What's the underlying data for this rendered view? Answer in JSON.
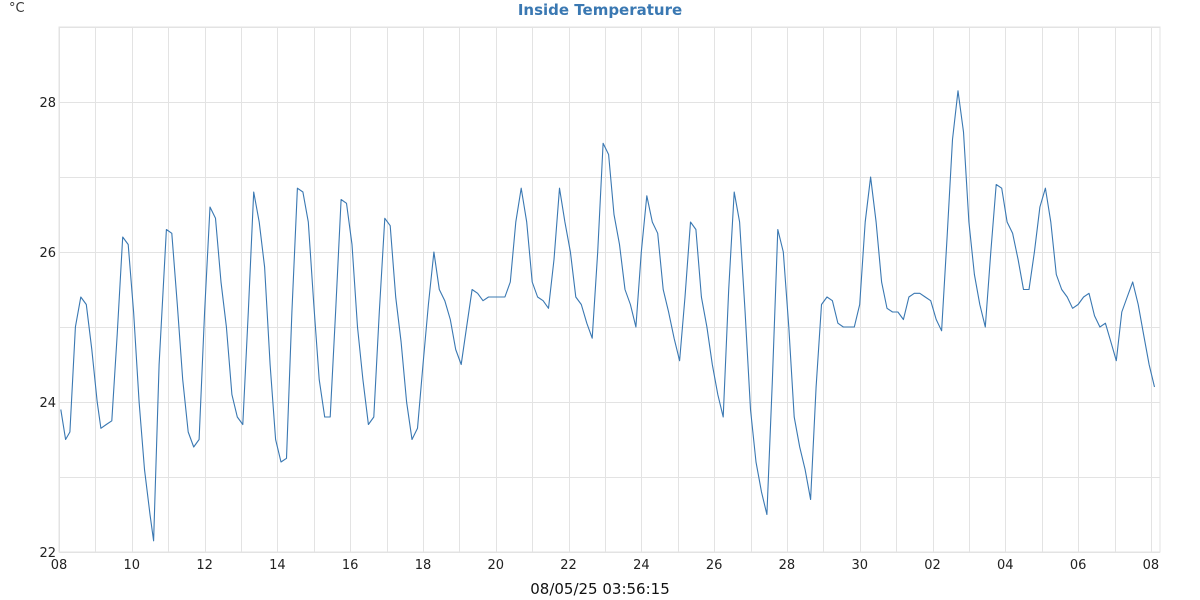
{
  "header": {
    "title": "Inside Temperature",
    "unit": "°C"
  },
  "footer": {
    "timestamp": "08/05/25 03:56:15"
  },
  "colors": {
    "line": "#3a78b2",
    "grid": "#e3e3e3",
    "title": "#3a78b2"
  },
  "chart_data": {
    "type": "line",
    "title": "Inside Temperature",
    "ylabel": "°C",
    "xlabel": "",
    "grid": true,
    "ylim": [
      22,
      29
    ],
    "xlim": [
      0,
      30.25
    ],
    "x_tick_labels": [
      {
        "x": 0,
        "label": "08"
      },
      {
        "x": 2,
        "label": "10"
      },
      {
        "x": 4,
        "label": "12"
      },
      {
        "x": 6,
        "label": "14"
      },
      {
        "x": 8,
        "label": "16"
      },
      {
        "x": 10,
        "label": "18"
      },
      {
        "x": 12,
        "label": "20"
      },
      {
        "x": 14,
        "label": "22"
      },
      {
        "x": 16,
        "label": "24"
      },
      {
        "x": 18,
        "label": "26"
      },
      {
        "x": 20,
        "label": "28"
      },
      {
        "x": 22,
        "label": "30"
      },
      {
        "x": 24,
        "label": "02"
      },
      {
        "x": 26,
        "label": "04"
      },
      {
        "x": 28,
        "label": "06"
      },
      {
        "x": 30,
        "label": "08"
      }
    ],
    "y_ticks": [
      22,
      24,
      26,
      28
    ],
    "series": [
      {
        "values": [
          [
            0.05,
            23.9
          ],
          [
            0.18,
            23.5
          ],
          [
            0.3,
            23.6
          ],
          [
            0.45,
            25.0
          ],
          [
            0.6,
            25.4
          ],
          [
            0.75,
            25.3
          ],
          [
            0.9,
            24.7
          ],
          [
            1.05,
            24.0
          ],
          [
            1.15,
            23.65
          ],
          [
            1.3,
            23.7
          ],
          [
            1.45,
            23.75
          ],
          [
            1.6,
            24.9
          ],
          [
            1.75,
            26.2
          ],
          [
            1.9,
            26.1
          ],
          [
            2.05,
            25.2
          ],
          [
            2.2,
            24.0
          ],
          [
            2.35,
            23.1
          ],
          [
            2.5,
            22.5
          ],
          [
            2.6,
            22.15
          ],
          [
            2.75,
            24.5
          ],
          [
            2.95,
            26.3
          ],
          [
            3.1,
            26.25
          ],
          [
            3.25,
            25.3
          ],
          [
            3.4,
            24.3
          ],
          [
            3.55,
            23.6
          ],
          [
            3.7,
            23.4
          ],
          [
            3.85,
            23.5
          ],
          [
            4.0,
            25.2
          ],
          [
            4.15,
            26.6
          ],
          [
            4.3,
            26.45
          ],
          [
            4.45,
            25.6
          ],
          [
            4.6,
            25.0
          ],
          [
            4.75,
            24.1
          ],
          [
            4.9,
            23.8
          ],
          [
            5.05,
            23.7
          ],
          [
            5.2,
            25.2
          ],
          [
            5.35,
            26.8
          ],
          [
            5.5,
            26.4
          ],
          [
            5.65,
            25.8
          ],
          [
            5.8,
            24.5
          ],
          [
            5.95,
            23.5
          ],
          [
            6.1,
            23.2
          ],
          [
            6.25,
            23.25
          ],
          [
            6.4,
            25.2
          ],
          [
            6.55,
            26.85
          ],
          [
            6.7,
            26.8
          ],
          [
            6.85,
            26.4
          ],
          [
            7.0,
            25.3
          ],
          [
            7.15,
            24.3
          ],
          [
            7.3,
            23.8
          ],
          [
            7.45,
            23.8
          ],
          [
            7.6,
            25.2
          ],
          [
            7.75,
            26.7
          ],
          [
            7.9,
            26.65
          ],
          [
            8.05,
            26.1
          ],
          [
            8.2,
            25.0
          ],
          [
            8.35,
            24.3
          ],
          [
            8.5,
            23.7
          ],
          [
            8.65,
            23.8
          ],
          [
            8.8,
            25.2
          ],
          [
            8.95,
            26.45
          ],
          [
            9.1,
            26.35
          ],
          [
            9.25,
            25.4
          ],
          [
            9.4,
            24.8
          ],
          [
            9.55,
            24.0
          ],
          [
            9.7,
            23.5
          ],
          [
            9.85,
            23.65
          ],
          [
            10.0,
            24.5
          ],
          [
            10.15,
            25.3
          ],
          [
            10.3,
            26.0
          ],
          [
            10.45,
            25.5
          ],
          [
            10.6,
            25.35
          ],
          [
            10.75,
            25.1
          ],
          [
            10.9,
            24.7
          ],
          [
            11.05,
            24.5
          ],
          [
            11.2,
            25.0
          ],
          [
            11.35,
            25.5
          ],
          [
            11.5,
            25.45
          ],
          [
            11.65,
            25.35
          ],
          [
            11.8,
            25.4
          ],
          [
            11.95,
            25.4
          ],
          [
            12.1,
            25.4
          ],
          [
            12.25,
            25.4
          ],
          [
            12.4,
            25.6
          ],
          [
            12.55,
            26.4
          ],
          [
            12.7,
            26.85
          ],
          [
            12.85,
            26.4
          ],
          [
            13.0,
            25.6
          ],
          [
            13.15,
            25.4
          ],
          [
            13.3,
            25.35
          ],
          [
            13.45,
            25.25
          ],
          [
            13.6,
            25.9
          ],
          [
            13.75,
            26.85
          ],
          [
            13.9,
            26.4
          ],
          [
            14.05,
            26.0
          ],
          [
            14.2,
            25.4
          ],
          [
            14.35,
            25.3
          ],
          [
            14.5,
            25.05
          ],
          [
            14.65,
            24.85
          ],
          [
            14.8,
            26.0
          ],
          [
            14.95,
            27.45
          ],
          [
            15.1,
            27.3
          ],
          [
            15.25,
            26.5
          ],
          [
            15.4,
            26.1
          ],
          [
            15.55,
            25.5
          ],
          [
            15.7,
            25.3
          ],
          [
            15.85,
            25.0
          ],
          [
            16.0,
            26.0
          ],
          [
            16.15,
            26.75
          ],
          [
            16.3,
            26.4
          ],
          [
            16.45,
            26.25
          ],
          [
            16.6,
            25.5
          ],
          [
            16.75,
            25.2
          ],
          [
            16.9,
            24.85
          ],
          [
            17.05,
            24.55
          ],
          [
            17.2,
            25.4
          ],
          [
            17.35,
            26.4
          ],
          [
            17.5,
            26.3
          ],
          [
            17.65,
            25.4
          ],
          [
            17.8,
            25.0
          ],
          [
            17.95,
            24.5
          ],
          [
            18.1,
            24.1
          ],
          [
            18.25,
            23.8
          ],
          [
            18.4,
            25.5
          ],
          [
            18.55,
            26.8
          ],
          [
            18.7,
            26.4
          ],
          [
            18.85,
            25.2
          ],
          [
            19.0,
            23.9
          ],
          [
            19.15,
            23.2
          ],
          [
            19.3,
            22.8
          ],
          [
            19.45,
            22.5
          ],
          [
            19.6,
            24.3
          ],
          [
            19.75,
            26.3
          ],
          [
            19.9,
            26.0
          ],
          [
            20.05,
            25.0
          ],
          [
            20.2,
            23.8
          ],
          [
            20.35,
            23.4
          ],
          [
            20.5,
            23.1
          ],
          [
            20.65,
            22.7
          ],
          [
            20.8,
            24.2
          ],
          [
            20.95,
            25.3
          ],
          [
            21.1,
            25.4
          ],
          [
            21.25,
            25.35
          ],
          [
            21.4,
            25.05
          ],
          [
            21.55,
            25.0
          ],
          [
            21.7,
            25.0
          ],
          [
            21.85,
            25.0
          ],
          [
            22.0,
            25.3
          ],
          [
            22.15,
            26.4
          ],
          [
            22.3,
            27.0
          ],
          [
            22.45,
            26.4
          ],
          [
            22.6,
            25.6
          ],
          [
            22.75,
            25.25
          ],
          [
            22.9,
            25.2
          ],
          [
            23.05,
            25.2
          ],
          [
            23.2,
            25.1
          ],
          [
            23.35,
            25.4
          ],
          [
            23.5,
            25.45
          ],
          [
            23.65,
            25.45
          ],
          [
            23.8,
            25.4
          ],
          [
            23.95,
            25.35
          ],
          [
            24.1,
            25.1
          ],
          [
            24.25,
            24.95
          ],
          [
            24.4,
            26.2
          ],
          [
            24.55,
            27.5
          ],
          [
            24.7,
            28.15
          ],
          [
            24.85,
            27.6
          ],
          [
            25.0,
            26.4
          ],
          [
            25.15,
            25.7
          ],
          [
            25.3,
            25.3
          ],
          [
            25.45,
            25.0
          ],
          [
            25.6,
            26.0
          ],
          [
            25.75,
            26.9
          ],
          [
            25.9,
            26.85
          ],
          [
            26.05,
            26.4
          ],
          [
            26.2,
            26.25
          ],
          [
            26.35,
            25.9
          ],
          [
            26.5,
            25.5
          ],
          [
            26.65,
            25.5
          ],
          [
            26.8,
            26.0
          ],
          [
            26.95,
            26.6
          ],
          [
            27.1,
            26.85
          ],
          [
            27.25,
            26.4
          ],
          [
            27.4,
            25.7
          ],
          [
            27.55,
            25.5
          ],
          [
            27.7,
            25.4
          ],
          [
            27.85,
            25.25
          ],
          [
            28.0,
            25.3
          ],
          [
            28.15,
            25.4
          ],
          [
            28.3,
            25.45
          ],
          [
            28.45,
            25.15
          ],
          [
            28.6,
            25.0
          ],
          [
            28.75,
            25.05
          ],
          [
            28.9,
            24.8
          ],
          [
            29.05,
            24.55
          ],
          [
            29.2,
            25.2
          ],
          [
            29.35,
            25.4
          ],
          [
            29.5,
            25.6
          ],
          [
            29.65,
            25.3
          ],
          [
            29.8,
            24.9
          ],
          [
            29.95,
            24.5
          ],
          [
            30.1,
            24.2
          ]
        ]
      }
    ]
  }
}
